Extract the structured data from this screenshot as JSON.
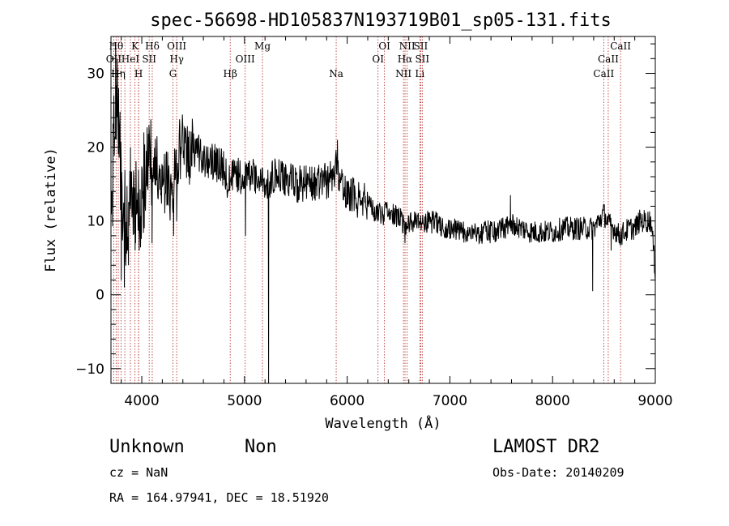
{
  "chart_data": {
    "type": "line",
    "title": "spec-56698-HD105837N193719B01_sp05-131.fits",
    "xlabel": "Wavelength (Å)",
    "ylabel": "Flux (relative)",
    "xlim": [
      3700,
      9000
    ],
    "ylim": [
      -12,
      35
    ],
    "x_ticks": [
      {
        "value": 4000,
        "label": "4000"
      },
      {
        "value": 5000,
        "label": "5000"
      },
      {
        "value": 6000,
        "label": "6000"
      },
      {
        "value": 7000,
        "label": "7000"
      },
      {
        "value": 8000,
        "label": "8000"
      },
      {
        "value": 9000,
        "label": "9000"
      }
    ],
    "y_ticks": [
      {
        "value": -10,
        "label": "−10"
      },
      {
        "value": 0,
        "label": "0"
      },
      {
        "value": 10,
        "label": "10"
      },
      {
        "value": 20,
        "label": "20"
      },
      {
        "value": 30,
        "label": "30"
      }
    ],
    "line_color": "#000000",
    "marker_color": "#b22222",
    "spectrum_anchors": [
      [
        3700,
        5
      ],
      [
        3730,
        24
      ],
      [
        3760,
        28
      ],
      [
        3790,
        18
      ],
      [
        3820,
        12
      ],
      [
        3850,
        10
      ],
      [
        3880,
        13
      ],
      [
        3910,
        14
      ],
      [
        3940,
        11
      ],
      [
        3970,
        14
      ],
      [
        4000,
        13
      ],
      [
        4030,
        16
      ],
      [
        4060,
        19
      ],
      [
        4100,
        17
      ],
      [
        4150,
        17
      ],
      [
        4200,
        16
      ],
      [
        4250,
        15
      ],
      [
        4300,
        13
      ],
      [
        4350,
        19
      ],
      [
        4400,
        21
      ],
      [
        4450,
        19
      ],
      [
        4500,
        20
      ],
      [
        4600,
        18.5
      ],
      [
        4700,
        18
      ],
      [
        4800,
        17
      ],
      [
        4850,
        15
      ],
      [
        4900,
        16
      ],
      [
        5000,
        16
      ],
      [
        5100,
        16
      ],
      [
        5180,
        15
      ],
      [
        5200,
        15
      ],
      [
        5300,
        16
      ],
      [
        5400,
        15.5
      ],
      [
        5500,
        15
      ],
      [
        5600,
        15
      ],
      [
        5700,
        15
      ],
      [
        5800,
        15.5
      ],
      [
        5850,
        16
      ],
      [
        5900,
        17.5
      ],
      [
        5950,
        15
      ],
      [
        6000,
        14
      ],
      [
        6100,
        13
      ],
      [
        6200,
        12.5
      ],
      [
        6300,
        11
      ],
      [
        6400,
        11
      ],
      [
        6500,
        10.5
      ],
      [
        6563,
        9.5
      ],
      [
        6600,
        10
      ],
      [
        6700,
        10
      ],
      [
        6800,
        10
      ],
      [
        6900,
        9.5
      ],
      [
        7000,
        9
      ],
      [
        7100,
        8.5
      ],
      [
        7200,
        8.5
      ],
      [
        7300,
        8.5
      ],
      [
        7400,
        8.5
      ],
      [
        7500,
        9
      ],
      [
        7600,
        9.5
      ],
      [
        7700,
        9
      ],
      [
        7800,
        8.5
      ],
      [
        7900,
        8.5
      ],
      [
        8000,
        8.5
      ],
      [
        8100,
        9
      ],
      [
        8200,
        9
      ],
      [
        8300,
        9
      ],
      [
        8400,
        9
      ],
      [
        8450,
        10
      ],
      [
        8500,
        11
      ],
      [
        8550,
        9.5
      ],
      [
        8600,
        9
      ],
      [
        8650,
        8
      ],
      [
        8700,
        8.5
      ],
      [
        8750,
        9
      ],
      [
        8800,
        9
      ],
      [
        8850,
        10
      ],
      [
        8900,
        10
      ],
      [
        8960,
        10
      ],
      [
        9000,
        3
      ]
    ],
    "spectrum_spikes": [
      [
        3745,
        34
      ],
      [
        3760,
        32
      ],
      [
        3775,
        28
      ],
      [
        3800,
        2
      ],
      [
        3830,
        1
      ],
      [
        3870,
        4
      ],
      [
        3890,
        20
      ],
      [
        3935,
        6
      ],
      [
        3975,
        6
      ],
      [
        4020,
        22
      ],
      [
        4070,
        23
      ],
      [
        4100,
        7
      ],
      [
        4310,
        8
      ],
      [
        4340,
        10
      ],
      [
        4370,
        23
      ],
      [
        5010,
        8
      ],
      [
        5235,
        -12
      ],
      [
        5905,
        21
      ],
      [
        6563,
        7
      ],
      [
        7590,
        13.5
      ],
      [
        8390,
        0.5
      ],
      [
        8570,
        6
      ]
    ],
    "line_markers": [
      {
        "x": 3750,
        "label": "Hθ",
        "row": 0
      },
      {
        "x": 3727,
        "label": "OII",
        "row": 1
      },
      {
        "x": 3771,
        "label": "Hη",
        "row": 2
      },
      {
        "x": 3934,
        "label": "K",
        "row": 0
      },
      {
        "x": 3889,
        "label": "HeI",
        "row": 1
      },
      {
        "x": 3969,
        "label": "H",
        "row": 2
      },
      {
        "x": 4102,
        "label": "Hδ",
        "row": 0
      },
      {
        "x": 4072,
        "label": "SII",
        "row": 1
      },
      {
        "x": 4340,
        "label": "OIII",
        "row": 0
      },
      {
        "x": 4340,
        "label": "Hγ",
        "row": 1
      },
      {
        "x": 4304,
        "label": "G",
        "row": 2
      },
      {
        "x": 5175,
        "label": "Mg",
        "row": 0
      },
      {
        "x": 5007,
        "label": "OIII",
        "row": 1
      },
      {
        "x": 4861,
        "label": "Hβ",
        "row": 2
      },
      {
        "x": 5893,
        "label": "Na",
        "row": 2
      },
      {
        "x": 6363,
        "label": "OI",
        "row": 0
      },
      {
        "x": 6300,
        "label": "OI",
        "row": 1
      },
      {
        "x": 6584,
        "label": "NII",
        "row": 0
      },
      {
        "x": 6716,
        "label": "SII",
        "row": 0
      },
      {
        "x": 6563,
        "label": "Hα",
        "row": 1
      },
      {
        "x": 6731,
        "label": "SII",
        "row": 1
      },
      {
        "x": 6548,
        "label": "NII",
        "row": 2
      },
      {
        "x": 6707,
        "label": "Li",
        "row": 2
      },
      {
        "x": 8662,
        "label": "CaII",
        "row": 0
      },
      {
        "x": 8542,
        "label": "CaII",
        "row": 1
      },
      {
        "x": 8498,
        "label": "CaII",
        "row": 2
      }
    ],
    "marker_lines_extra": [
      3798,
      3835,
      3970,
      4102,
      4304,
      4861,
      5007,
      5175,
      5893,
      6300,
      6548,
      6563,
      6584,
      6707,
      6716,
      6731,
      8498,
      8542,
      8662
    ]
  },
  "footer": {
    "class_label": "Unknown",
    "subclass_label": "Non",
    "redshift": "cz = NaN",
    "coords": "RA = 164.97941, DEC =  18.51920",
    "survey": "LAMOST DR2",
    "obs_date": "Obs-Date: 20140209"
  }
}
